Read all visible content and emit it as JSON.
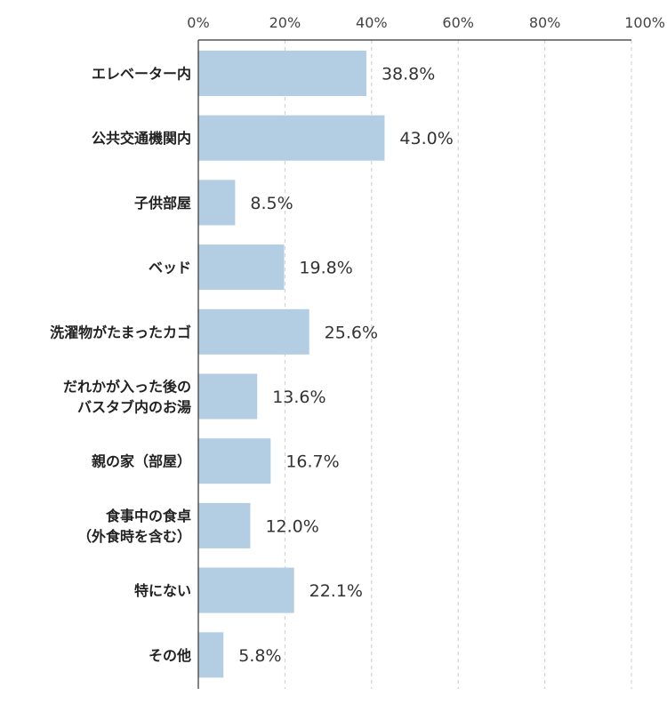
{
  "chart_data": {
    "type": "bar",
    "orientation": "horizontal",
    "categories": [
      [
        "エレベーター内"
      ],
      [
        "公共交通機関内"
      ],
      [
        "子供部屋"
      ],
      [
        "ベッド"
      ],
      [
        "洗濯物がたまったカゴ"
      ],
      [
        "だれかが入った後の",
        "バスタブ内のお湯"
      ],
      [
        "親の家（部屋）"
      ],
      [
        "食事中の食卓",
        "（外食時を含む）"
      ],
      [
        "特にない"
      ],
      [
        "その他"
      ]
    ],
    "values": [
      38.8,
      43.0,
      8.5,
      19.8,
      25.6,
      13.6,
      16.7,
      12.0,
      22.1,
      5.8
    ],
    "value_labels": [
      "38.8%",
      "43.0%",
      "8.5%",
      "19.8%",
      "25.6%",
      "13.6%",
      "16.7%",
      "12.0%",
      "22.1%",
      "5.8%"
    ],
    "x_ticks": [
      0,
      20,
      40,
      60,
      80,
      100
    ],
    "x_tick_labels": [
      "0%",
      "20%",
      "40%",
      "60%",
      "80%",
      "100%"
    ],
    "xlim": [
      0,
      100
    ],
    "axis_position": "top",
    "grid": "vertical dashed",
    "bar_color": "#b3cde3",
    "title": "",
    "xlabel": "",
    "ylabel": ""
  }
}
